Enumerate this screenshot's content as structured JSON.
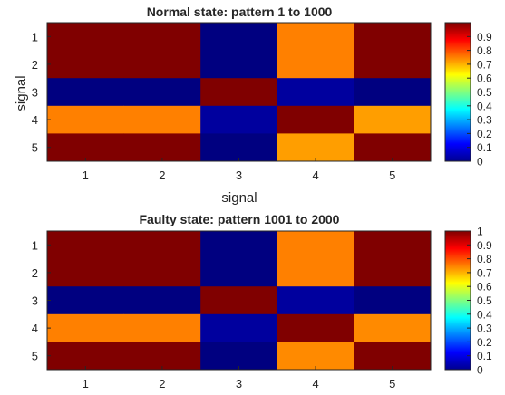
{
  "chart_data": [
    {
      "type": "heatmap",
      "title": "Normal state: pattern 1 to 1000",
      "xlabel": "signal",
      "ylabel": "signal",
      "x_ticks": [
        "1",
        "2",
        "3",
        "4",
        "5"
      ],
      "y_ticks": [
        "1",
        "2",
        "3",
        "4",
        "5"
      ],
      "values": [
        [
          1.0,
          1.0,
          0.0,
          0.75,
          1.0
        ],
        [
          1.0,
          1.0,
          0.0,
          0.75,
          1.0
        ],
        [
          0.0,
          0.0,
          1.0,
          0.03,
          0.0
        ],
        [
          0.75,
          0.75,
          0.03,
          1.0,
          0.72
        ],
        [
          1.0,
          1.0,
          0.0,
          0.72,
          1.0
        ]
      ],
      "zlim": [
        0,
        1
      ],
      "colorbar": {
        "colormap": "jet",
        "ticks": [
          "0",
          "0.1",
          "0.2",
          "0.3",
          "0.4",
          "0.5",
          "0.6",
          "0.7",
          "0.8",
          "0.9"
        ]
      }
    },
    {
      "type": "heatmap",
      "title": "Faulty state: pattern 1001 to 2000",
      "xlabel": "",
      "ylabel": "",
      "x_ticks": [
        "1",
        "2",
        "3",
        "4",
        "5"
      ],
      "y_ticks": [
        "1",
        "2",
        "3",
        "4",
        "5"
      ],
      "values": [
        [
          1.0,
          1.0,
          0.0,
          0.75,
          1.0
        ],
        [
          1.0,
          1.0,
          0.0,
          0.75,
          1.0
        ],
        [
          0.0,
          0.0,
          1.0,
          0.03,
          0.0
        ],
        [
          0.75,
          0.75,
          0.03,
          1.0,
          0.74
        ],
        [
          1.0,
          1.0,
          0.0,
          0.74,
          1.0
        ]
      ],
      "zlim": [
        0,
        1
      ],
      "colorbar": {
        "colormap": "jet",
        "ticks": [
          "0",
          "0.1",
          "0.2",
          "0.3",
          "0.4",
          "0.5",
          "0.6",
          "0.7",
          "0.8",
          "0.9",
          "1"
        ]
      }
    }
  ]
}
